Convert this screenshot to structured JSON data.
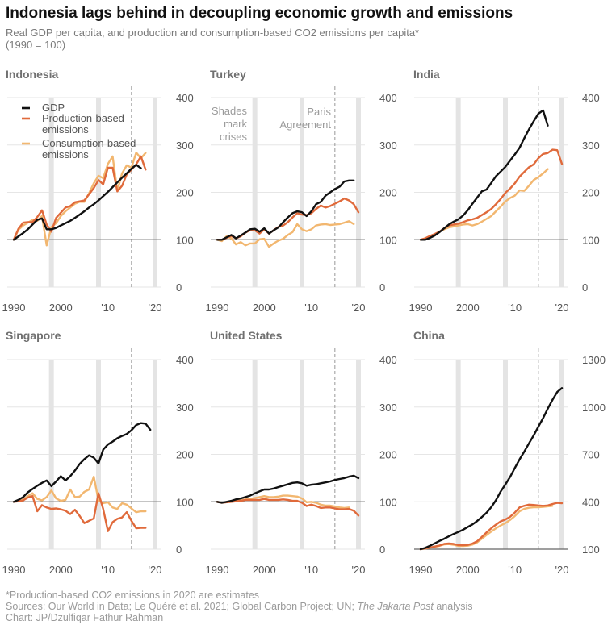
{
  "title": "Indonesia lags behind in decoupling economic growth and emissions",
  "subtitle_line1": "Real GDP per capita, and production and consumption-based CO2 emissions per capita*",
  "subtitle_line2": "(1990 = 100)",
  "footnote": "*Production-based CO2 emissions in 2020 are estimates",
  "sources_prefix": "Sources: Our World in Data; Le Quéré et al. 2021; Global Carbon Project; UN; ",
  "sources_italic": "The Jakarta Post",
  "sources_suffix": " analysis",
  "credit": "Chart: JP/Dzulfiqar Fathur Rahman",
  "colors": {
    "gdp": "#111111",
    "production": "#e06a3b",
    "consumption": "#f2b770",
    "crisis": "#e4e4e4",
    "baseline": "#666666",
    "paris": "#999999"
  },
  "annotations": {
    "shades": [
      "Shades",
      "mark",
      "crises"
    ],
    "paris": [
      "Paris",
      "Agreement"
    ]
  },
  "chart_data": [
    {
      "type": "line",
      "panel": "Indonesia",
      "x_ticks": [
        "1990",
        "2000",
        "'10",
        "'20"
      ],
      "ylim": [
        0,
        400
      ],
      "y_ticks": [
        0,
        100,
        200,
        300,
        400
      ],
      "crisis_years": [
        1998,
        2008,
        2020
      ],
      "reference_year": 2015,
      "legend": [
        "GDP",
        "Production-based emissions",
        "Consumption-based emissions"
      ],
      "series": [
        {
          "name": "GDP",
          "x_start": 1990,
          "values": [
            100,
            107,
            114,
            122,
            132,
            142,
            145,
            122,
            122,
            125,
            130,
            135,
            140,
            146,
            153,
            160,
            168,
            175,
            183,
            192,
            201,
            211,
            221,
            231,
            240,
            250,
            258,
            251
          ]
        },
        {
          "name": "Production-based emissions",
          "x_start": 1990,
          "values": [
            100,
            123,
            136,
            137,
            137,
            148,
            162,
            132,
            117,
            146,
            157,
            168,
            171,
            179,
            181,
            183,
            196,
            209,
            226,
            217,
            252,
            252,
            202,
            214,
            238,
            248,
            259,
            276,
            248
          ]
        },
        {
          "name": "Consumption-based emissions",
          "x_start": 1990,
          "values": [
            100,
            121,
            130,
            136,
            142,
            140,
            150,
            88,
            127,
            135,
            150,
            160,
            168,
            176,
            180,
            180,
            198,
            219,
            235,
            230,
            260,
            276,
            203,
            240,
            257,
            252,
            284,
            272,
            283
          ]
        }
      ]
    },
    {
      "type": "line",
      "panel": "Turkey",
      "x_ticks": [
        "1990",
        "2000",
        "'10",
        "'20"
      ],
      "ylim": [
        0,
        400
      ],
      "y_ticks": [
        0,
        100,
        200,
        300,
        400
      ],
      "crisis_years": [
        1998,
        2008,
        2020
      ],
      "reference_year": 2015,
      "series": [
        {
          "name": "GDP",
          "x_start": 1990,
          "values": [
            100,
            100,
            105,
            110,
            103,
            109,
            115,
            122,
            123,
            117,
            124,
            113,
            120,
            126,
            137,
            147,
            156,
            160,
            158,
            150,
            160,
            175,
            180,
            193,
            200,
            207,
            212,
            223,
            225,
            225
          ]
        },
        {
          "name": "Production-based emissions",
          "x_start": 1990,
          "values": [
            100,
            100,
            104,
            108,
            103,
            107,
            115,
            120,
            120,
            113,
            122,
            113,
            120,
            127,
            130,
            137,
            147,
            156,
            153,
            152,
            156,
            165,
            172,
            168,
            171,
            176,
            181,
            187,
            183,
            175,
            158
          ]
        },
        {
          "name": "Consumption-based emissions",
          "x_start": 1990,
          "values": [
            100,
            97,
            107,
            103,
            90,
            95,
            88,
            92,
            92,
            101,
            102,
            85,
            92,
            98,
            102,
            110,
            116,
            133,
            122,
            118,
            122,
            130,
            132,
            133,
            131,
            132,
            133,
            136,
            139,
            133
          ]
        }
      ]
    },
    {
      "type": "line",
      "panel": "India",
      "x_ticks": [
        "1990",
        "2000",
        "'10",
        "'20"
      ],
      "ylim": [
        0,
        400
      ],
      "y_ticks": [
        0,
        100,
        200,
        300,
        400
      ],
      "crisis_years": [
        1998,
        2008,
        2020
      ],
      "reference_year": 2015,
      "series": [
        {
          "name": "GDP",
          "x_start": 1990,
          "values": [
            100,
            100,
            104,
            109,
            116,
            124,
            132,
            138,
            143,
            151,
            162,
            176,
            189,
            202,
            206,
            220,
            234,
            244,
            254,
            267,
            280,
            294,
            314,
            333,
            350,
            366,
            373,
            341
          ]
        },
        {
          "name": "Production-based emissions",
          "x_start": 1990,
          "values": [
            100,
            103,
            108,
            112,
            117,
            124,
            130,
            132,
            134,
            137,
            141,
            143,
            146,
            152,
            158,
            165,
            175,
            186,
            199,
            208,
            219,
            233,
            243,
            253,
            259,
            272,
            281,
            283,
            290,
            289,
            260
          ]
        },
        {
          "name": "Consumption-based emissions",
          "x_start": 1990,
          "values": [
            100,
            103,
            108,
            112,
            117,
            122,
            126,
            128,
            130,
            132,
            133,
            130,
            133,
            138,
            144,
            150,
            160,
            170,
            181,
            188,
            193,
            204,
            203,
            214,
            226,
            232,
            240,
            249
          ]
        }
      ]
    },
    {
      "type": "line",
      "panel": "Singapore",
      "x_ticks": [
        "1990",
        "2000",
        "'10",
        "'20"
      ],
      "ylim": [
        0,
        400
      ],
      "y_ticks": [
        0,
        100,
        200,
        300,
        400
      ],
      "crisis_years": [
        1998,
        2008,
        2020
      ],
      "reference_year": 2015,
      "series": [
        {
          "name": "GDP",
          "x_start": 1990,
          "values": [
            100,
            104,
            110,
            120,
            127,
            134,
            140,
            145,
            133,
            143,
            154,
            145,
            154,
            166,
            180,
            190,
            198,
            193,
            181,
            210,
            221,
            227,
            234,
            239,
            243,
            251,
            262,
            266,
            265,
            252
          ]
        },
        {
          "name": "Production-based emissions",
          "x_start": 1990,
          "values": [
            100,
            101,
            103,
            109,
            112,
            80,
            93,
            88,
            85,
            86,
            84,
            81,
            74,
            83,
            70,
            55,
            60,
            65,
            118,
            85,
            38,
            57,
            64,
            67,
            78,
            60,
            44,
            45,
            45
          ]
        },
        {
          "name": "Consumption-based emissions",
          "x_start": 1990,
          "values": [
            100,
            102,
            105,
            112,
            118,
            106,
            103,
            110,
            124,
            107,
            102,
            104,
            126,
            110,
            111,
            121,
            126,
            153,
            103,
            97,
            99,
            88,
            85,
            97,
            94,
            86,
            78,
            80,
            80
          ]
        }
      ]
    },
    {
      "type": "line",
      "panel": "United States",
      "x_ticks": [
        "1990",
        "2000",
        "'10",
        "'20"
      ],
      "ylim": [
        0,
        400
      ],
      "y_ticks": [
        0,
        100,
        200,
        300,
        400
      ],
      "crisis_years": [
        1998,
        2008,
        2020
      ],
      "reference_year": 2015,
      "series": [
        {
          "name": "GDP",
          "x_start": 1990,
          "values": [
            100,
            98,
            100,
            102,
            105,
            107,
            110,
            113,
            118,
            122,
            126,
            126,
            128,
            131,
            134,
            137,
            140,
            141,
            139,
            134,
            136,
            137,
            139,
            141,
            143,
            146,
            148,
            150,
            153,
            155,
            150
          ]
        },
        {
          "name": "Production-based emissions",
          "x_start": 1990,
          "values": [
            100,
            98,
            99,
            100,
            101,
            102,
            104,
            104,
            104,
            104,
            106,
            104,
            104,
            104,
            105,
            104,
            102,
            102,
            98,
            91,
            94,
            91,
            87,
            88,
            88,
            86,
            84,
            84,
            85,
            81,
            71
          ]
        },
        {
          "name": "Consumption-based emissions",
          "x_start": 1990,
          "values": [
            100,
            98,
            99,
            100,
            102,
            103,
            105,
            106,
            108,
            110,
            112,
            110,
            110,
            111,
            113,
            113,
            112,
            111,
            107,
            99,
            100,
            98,
            94,
            92,
            92,
            90,
            88,
            87,
            88
          ]
        }
      ]
    },
    {
      "type": "line",
      "panel": "China",
      "x_ticks": [
        "1990",
        "2000",
        "'10",
        "'20"
      ],
      "ylim": [
        100,
        1300
      ],
      "y_ticks": [
        100,
        400,
        700,
        1000,
        1300
      ],
      "crisis_years": [
        1998,
        2008,
        2020
      ],
      "reference_year": 2015,
      "series": [
        {
          "name": "GDP",
          "x_start": 1990,
          "values": [
            100,
            108,
            122,
            137,
            152,
            166,
            181,
            196,
            209,
            223,
            240,
            257,
            278,
            303,
            331,
            366,
            410,
            465,
            510,
            557,
            614,
            668,
            717,
            770,
            820,
            875,
            930,
            990,
            1045,
            1095,
            1120
          ]
        },
        {
          "name": "Production-based emissions",
          "x_start": 1990,
          "values": [
            100,
            105,
            110,
            117,
            123,
            133,
            136,
            133,
            126,
            125,
            127,
            135,
            150,
            177,
            206,
            232,
            255,
            276,
            288,
            305,
            332,
            364,
            374,
            382,
            380,
            377,
            374,
            377,
            386,
            393,
            391
          ]
        },
        {
          "name": "Consumption-based emissions",
          "x_start": 1990,
          "values": [
            100,
            104,
            109,
            115,
            121,
            130,
            132,
            128,
            121,
            120,
            122,
            129,
            143,
            166,
            190,
            212,
            232,
            250,
            265,
            285,
            310,
            340,
            355,
            362,
            365,
            365,
            368,
            371,
            374
          ]
        }
      ]
    }
  ]
}
